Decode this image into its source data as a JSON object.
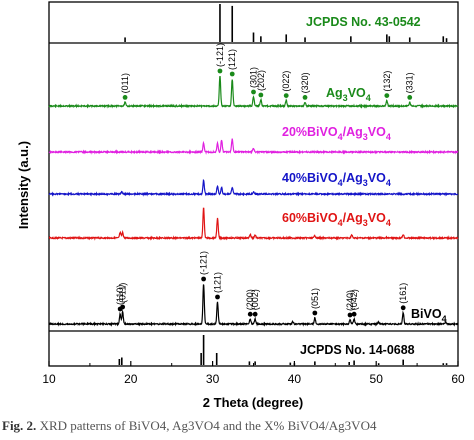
{
  "chart_data": {
    "type": "line",
    "xlabel": "2 Theta (degree)",
    "ylabel": "Intensity (a.u.)",
    "xlim": [
      10,
      60
    ],
    "x_ticks": [
      10,
      20,
      30,
      40,
      50,
      60
    ],
    "grid": false,
    "reference_top": {
      "name": "JCPDS No. 43-0542",
      "color": "#1a8a1a",
      "peaks": [
        {
          "x": 19.3,
          "h": 0.12
        },
        {
          "x": 30.9,
          "h": 1.0
        },
        {
          "x": 32.4,
          "h": 0.95
        },
        {
          "x": 35.0,
          "h": 0.25
        },
        {
          "x": 35.9,
          "h": 0.15
        },
        {
          "x": 39.0,
          "h": 0.2
        },
        {
          "x": 41.3,
          "h": 0.12
        },
        {
          "x": 46.9,
          "h": 0.15
        },
        {
          "x": 51.3,
          "h": 0.2
        },
        {
          "x": 51.6,
          "h": 0.15
        },
        {
          "x": 54.1,
          "h": 0.12
        },
        {
          "x": 58.2,
          "h": 0.15
        },
        {
          "x": 58.6,
          "h": 0.1
        }
      ]
    },
    "series": [
      {
        "name": "Ag3VO4",
        "label_main": "Ag",
        "label_sub1": "3",
        "label_mid": "VO",
        "label_sub2": "4",
        "color": "#1a8a1a",
        "peaks": [
          {
            "x": 19.3,
            "h": 0.12
          },
          {
            "x": 30.9,
            "h": 1.0
          },
          {
            "x": 32.4,
            "h": 0.9
          },
          {
            "x": 35.0,
            "h": 0.3
          },
          {
            "x": 35.9,
            "h": 0.2
          },
          {
            "x": 39.0,
            "h": 0.18
          },
          {
            "x": 41.3,
            "h": 0.12
          },
          {
            "x": 51.3,
            "h": 0.18
          },
          {
            "x": 54.1,
            "h": 0.12
          }
        ],
        "annotations": [
          {
            "x": 19.3,
            "label": "(011)"
          },
          {
            "x": 30.9,
            "label": "(-121)"
          },
          {
            "x": 32.4,
            "label": "(121)"
          },
          {
            "x": 35.0,
            "label": "(301)"
          },
          {
            "x": 35.9,
            "label": "(202)"
          },
          {
            "x": 39.0,
            "label": "(022)"
          },
          {
            "x": 41.3,
            "label": "(320)"
          },
          {
            "x": 51.3,
            "label": "(132)"
          },
          {
            "x": 54.1,
            "label": "(331)"
          }
        ]
      },
      {
        "name": "20%BiVO4/Ag3VO4",
        "label_a": "20%BiVO",
        "label_b": "4",
        "label_c": "/Ag",
        "label_d": "3",
        "label_e": "VO",
        "label_f": "4",
        "color": "#e020e0",
        "peaks": [
          {
            "x": 28.9,
            "h": 0.45
          },
          {
            "x": 30.6,
            "h": 0.45
          },
          {
            "x": 31.1,
            "h": 0.6
          },
          {
            "x": 32.4,
            "h": 0.65
          },
          {
            "x": 35.0,
            "h": 0.2
          }
        ]
      },
      {
        "name": "40%BiVO4/Ag3VO4",
        "label_a": "40%BiVO",
        "label_b": "4",
        "label_c": "/Ag",
        "label_d": "3",
        "label_e": "VO",
        "label_f": "4",
        "color": "#1414c8",
        "peaks": [
          {
            "x": 18.9,
            "h": 0.15
          },
          {
            "x": 28.9,
            "h": 0.75
          },
          {
            "x": 30.6,
            "h": 0.45
          },
          {
            "x": 31.1,
            "h": 0.35
          },
          {
            "x": 32.4,
            "h": 0.35
          },
          {
            "x": 35.0,
            "h": 0.12
          }
        ]
      },
      {
        "name": "60%BiVO4/Ag3VO4",
        "label_a": "60%BiVO",
        "label_b": "4",
        "label_c": "/Ag",
        "label_d": "3",
        "label_e": "VO",
        "label_f": "4",
        "color": "#e01414",
        "peaks": [
          {
            "x": 18.7,
            "h": 0.18
          },
          {
            "x": 19.0,
            "h": 0.18
          },
          {
            "x": 28.9,
            "h": 1.0
          },
          {
            "x": 30.6,
            "h": 0.65
          },
          {
            "x": 34.6,
            "h": 0.12
          },
          {
            "x": 35.2,
            "h": 0.1
          },
          {
            "x": 42.5,
            "h": 0.08
          },
          {
            "x": 47.0,
            "h": 0.1
          },
          {
            "x": 53.3,
            "h": 0.12
          }
        ]
      },
      {
        "name": "BiVO4",
        "label_a": "BiVO",
        "label_b": "4",
        "color": "#000000",
        "peaks": [
          {
            "x": 18.7,
            "h": 0.25
          },
          {
            "x": 19.0,
            "h": 0.3
          },
          {
            "x": 28.9,
            "h": 1.0
          },
          {
            "x": 30.6,
            "h": 0.55
          },
          {
            "x": 34.6,
            "h": 0.12
          },
          {
            "x": 35.2,
            "h": 0.12
          },
          {
            "x": 39.8,
            "h": 0.06
          },
          {
            "x": 42.5,
            "h": 0.15
          },
          {
            "x": 46.8,
            "h": 0.1
          },
          {
            "x": 47.3,
            "h": 0.12
          },
          {
            "x": 50.3,
            "h": 0.05
          },
          {
            "x": 53.3,
            "h": 0.28
          },
          {
            "x": 58.5,
            "h": 0.05
          }
        ],
        "annotations": [
          {
            "x": 18.7,
            "label": "(110)"
          },
          {
            "x": 19.0,
            "label": "(011)"
          },
          {
            "x": 28.9,
            "label": "(-121)"
          },
          {
            "x": 30.6,
            "label": "(121)"
          },
          {
            "x": 34.6,
            "label": "(200)"
          },
          {
            "x": 35.2,
            "label": "(002)"
          },
          {
            "x": 42.5,
            "label": "(051)"
          },
          {
            "x": 46.8,
            "label": "(240)"
          },
          {
            "x": 47.3,
            "label": "(042)"
          },
          {
            "x": 53.3,
            "label": "(161)"
          }
        ]
      }
    ],
    "reference_bottom": {
      "name": "JCPDS No. 14-0688",
      "color": "#000000",
      "peaks": [
        {
          "x": 18.6,
          "h": 0.2
        },
        {
          "x": 18.9,
          "h": 0.25
        },
        {
          "x": 28.6,
          "h": 0.4
        },
        {
          "x": 28.9,
          "h": 1.0
        },
        {
          "x": 30.5,
          "h": 0.4
        },
        {
          "x": 34.5,
          "h": 0.12
        },
        {
          "x": 35.2,
          "h": 0.12
        },
        {
          "x": 39.5,
          "h": 0.08
        },
        {
          "x": 40.0,
          "h": 0.06
        },
        {
          "x": 42.5,
          "h": 0.12
        },
        {
          "x": 46.7,
          "h": 0.1
        },
        {
          "x": 47.3,
          "h": 0.15
        },
        {
          "x": 50.3,
          "h": 0.06
        },
        {
          "x": 53.3,
          "h": 0.18
        },
        {
          "x": 58.2,
          "h": 0.06
        },
        {
          "x": 58.6,
          "h": 0.06
        }
      ]
    }
  },
  "caption": {
    "bold": "Fig. 2.",
    "text": " XRD patterns of BiVO4, Ag3VO4 and the X% BiVO4/Ag3VO4"
  }
}
